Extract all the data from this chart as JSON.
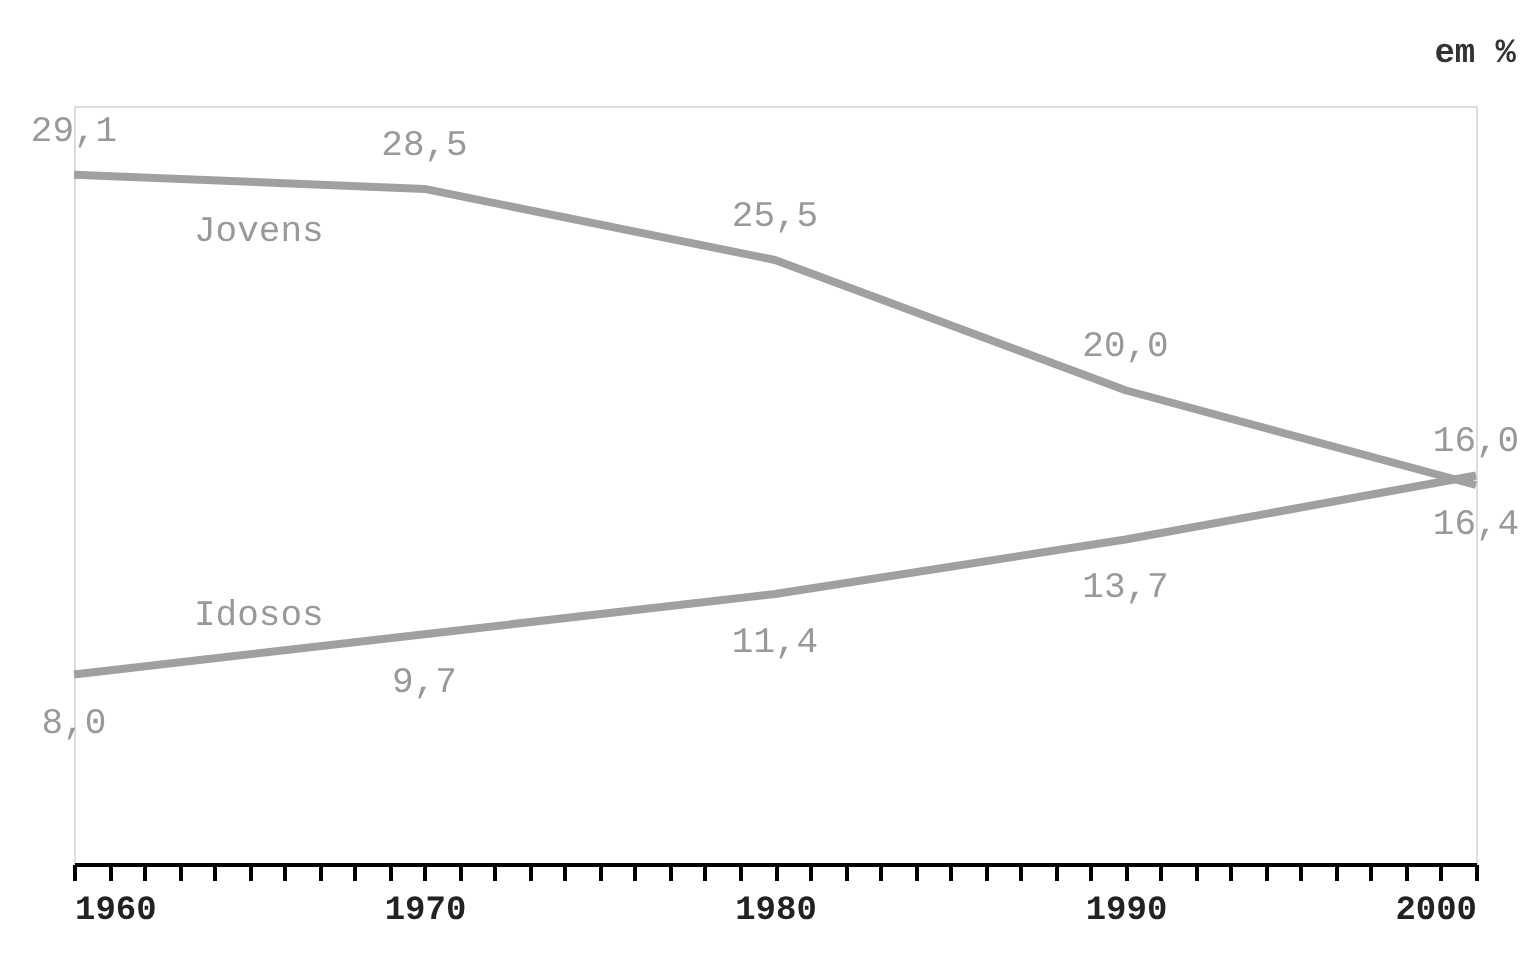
{
  "chart_data": {
    "type": "line",
    "annotations": [
      "em %"
    ],
    "x": [
      1960,
      1970,
      1980,
      1990,
      2000
    ],
    "series": [
      {
        "name": "Jovens",
        "color": "#a0a0a0",
        "values": [
          29.1,
          28.5,
          25.5,
          20.0,
          16.0
        ],
        "value_labels": [
          "29,1",
          "28,5",
          "25,5",
          "20,0",
          "16,0"
        ]
      },
      {
        "name": "Idosos",
        "color": "#a0a0a0",
        "values": [
          8.0,
          9.7,
          11.4,
          13.7,
          16.4
        ],
        "value_labels": [
          "8,0",
          "9,7",
          "11,4",
          "13,7",
          "16,4"
        ]
      }
    ],
    "xlim": [
      1960,
      2000
    ],
    "xticks": [
      1960,
      {
        "value": 1961,
        "label": null
      },
      {
        "value": 1962,
        "label": null
      },
      {
        "value": 1963,
        "label": null
      },
      {
        "value": 1964,
        "label": null
      },
      {
        "value": 1965,
        "label": null
      },
      {
        "value": 1966,
        "label": null
      },
      {
        "value": 1967,
        "label": null
      },
      {
        "value": 1968,
        "label": null
      },
      {
        "value": 1969,
        "label": null
      },
      1970,
      {
        "value": 1971,
        "label": null
      },
      {
        "value": 1972,
        "label": null
      },
      {
        "value": 1973,
        "label": null
      },
      {
        "value": 1974,
        "label": null
      },
      {
        "value": 1975,
        "label": null
      },
      {
        "value": 1976,
        "label": null
      },
      {
        "value": 1977,
        "label": null
      },
      {
        "value": 1978,
        "label": null
      },
      {
        "value": 1979,
        "label": null
      },
      1980,
      {
        "value": 1981,
        "label": null
      },
      {
        "value": 1982,
        "label": null
      },
      {
        "value": 1983,
        "label": null
      },
      {
        "value": 1984,
        "label": null
      },
      {
        "value": 1985,
        "label": null
      },
      {
        "value": 1986,
        "label": null
      },
      {
        "value": 1987,
        "label": null
      },
      {
        "value": 1988,
        "label": null
      },
      {
        "value": 1989,
        "label": null
      },
      1990,
      {
        "value": 1991,
        "label": null
      },
      {
        "value": 1992,
        "label": null
      },
      {
        "value": 1993,
        "label": null
      },
      {
        "value": 1994,
        "label": null
      },
      {
        "value": 1995,
        "label": null
      },
      {
        "value": 1996,
        "label": null
      },
      {
        "value": 1997,
        "label": null
      },
      {
        "value": 1998,
        "label": null
      },
      {
        "value": 1999,
        "label": null
      },
      2000
    ],
    "ylim": [
      0,
      32
    ],
    "tick_labels": "x",
    "grid": false,
    "marker": "none",
    "line_style": "solid"
  }
}
